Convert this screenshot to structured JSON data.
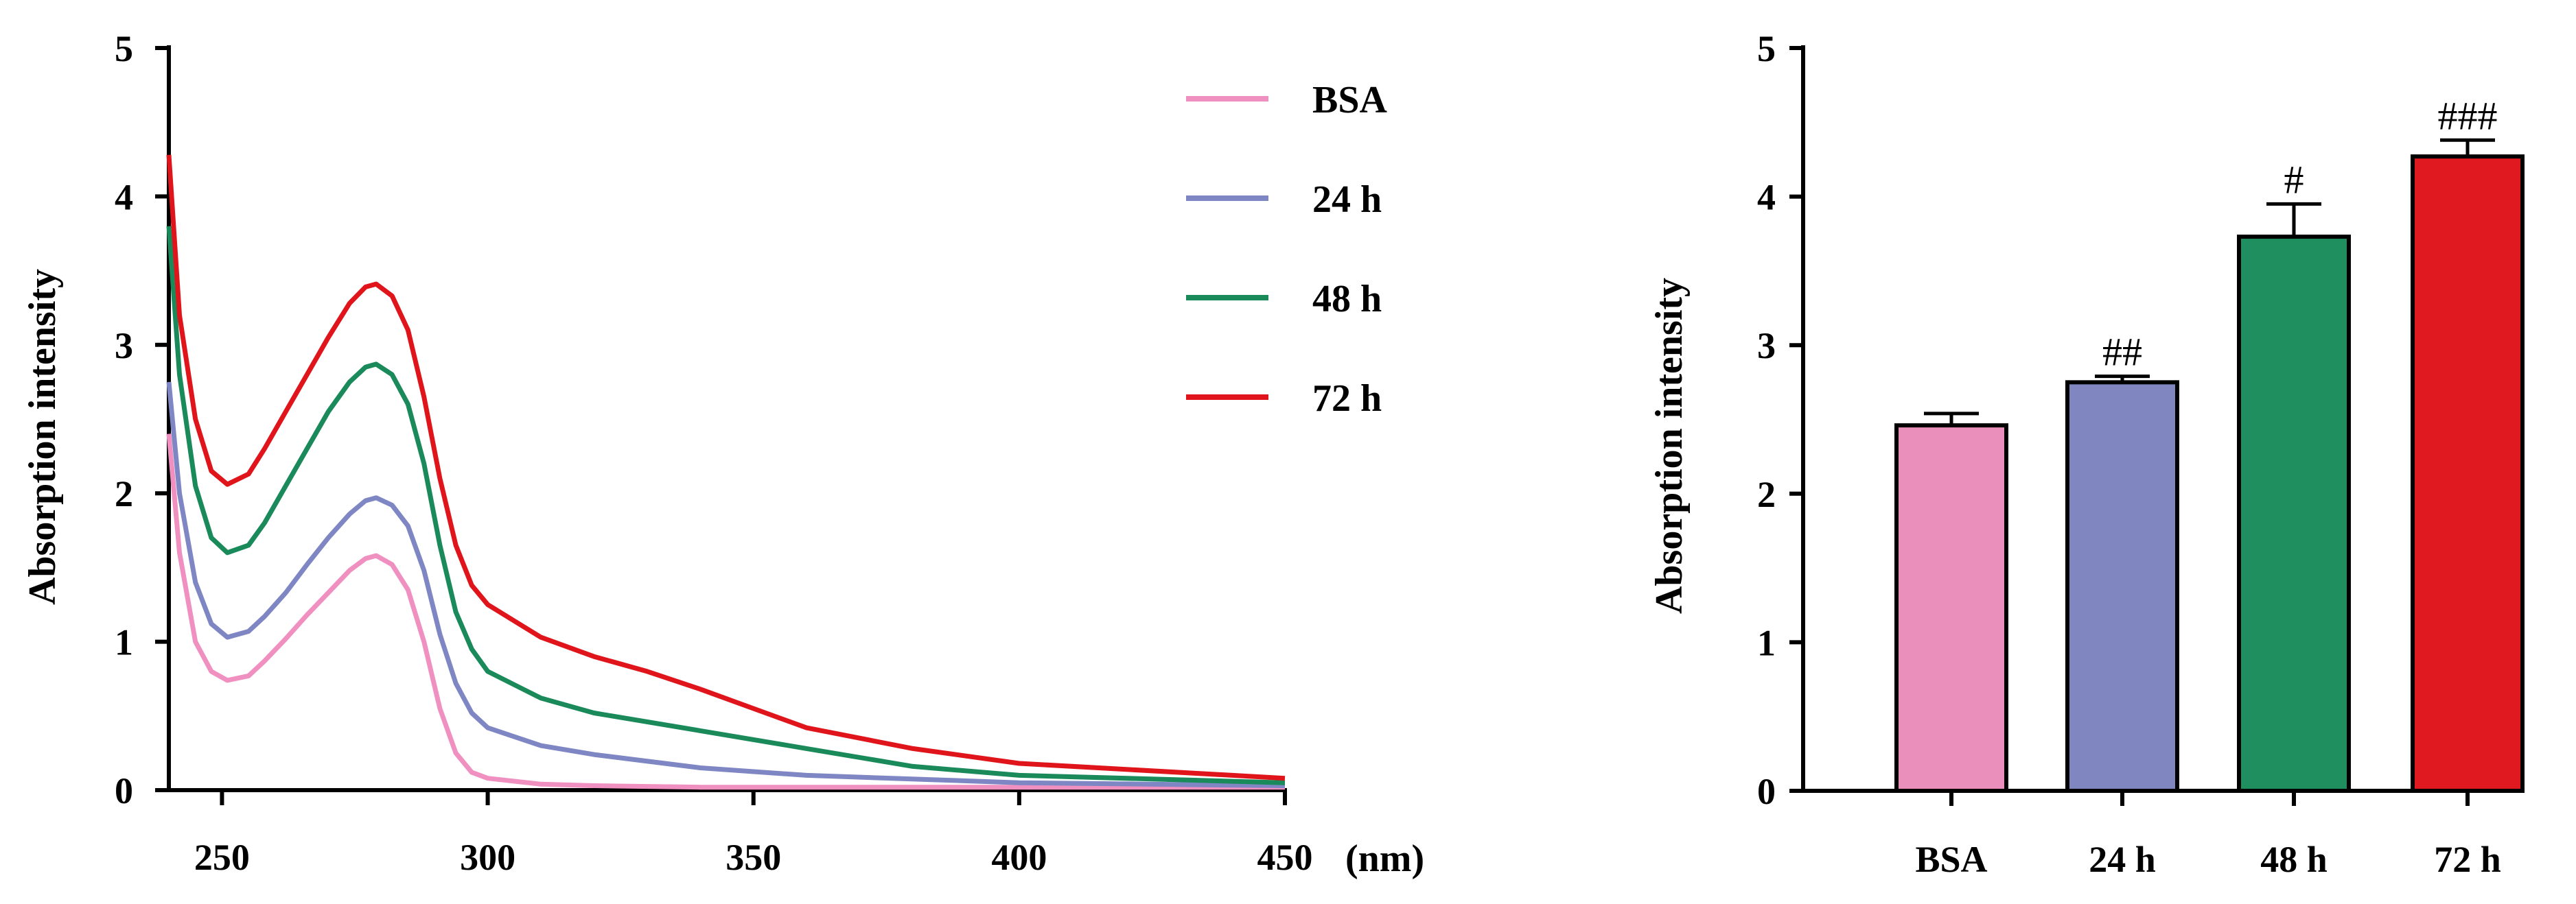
{
  "chart_data": [
    {
      "type": "line",
      "xlabel": "(nm)",
      "ylabel": "Absorption intensity",
      "xlim": [
        240,
        450
      ],
      "ylim": [
        0,
        5
      ],
      "xticks": [
        250,
        300,
        350,
        400,
        450
      ],
      "yticks": [
        0,
        1,
        2,
        3,
        4,
        5
      ],
      "legend_position": "top-right",
      "series": [
        {
          "name": "BSA",
          "color": "#f090c0",
          "x": [
            240,
            242,
            245,
            248,
            251,
            255,
            258,
            262,
            266,
            270,
            274,
            277,
            279,
            282,
            285,
            288,
            291,
            294,
            297,
            300,
            310,
            320,
            340,
            360,
            400,
            450
          ],
          "y": [
            2.4,
            1.6,
            1.0,
            0.8,
            0.74,
            0.77,
            0.87,
            1.02,
            1.18,
            1.33,
            1.48,
            1.56,
            1.58,
            1.52,
            1.35,
            1.0,
            0.55,
            0.25,
            0.12,
            0.08,
            0.04,
            0.03,
            0.02,
            0.02,
            0.02,
            0.02
          ]
        },
        {
          "name": "24 h",
          "color": "#7f86c4",
          "x": [
            240,
            242,
            245,
            248,
            251,
            255,
            258,
            262,
            266,
            270,
            274,
            277,
            279,
            282,
            285,
            288,
            291,
            294,
            297,
            300,
            310,
            320,
            340,
            360,
            400,
            450
          ],
          "y": [
            2.75,
            2.0,
            1.4,
            1.12,
            1.03,
            1.07,
            1.17,
            1.33,
            1.52,
            1.7,
            1.86,
            1.95,
            1.97,
            1.92,
            1.78,
            1.48,
            1.05,
            0.72,
            0.52,
            0.42,
            0.3,
            0.24,
            0.15,
            0.1,
            0.05,
            0.03
          ]
        },
        {
          "name": "48 h",
          "color": "#1a8a5a",
          "x": [
            240,
            242,
            245,
            248,
            251,
            255,
            258,
            262,
            266,
            270,
            274,
            277,
            279,
            282,
            285,
            288,
            291,
            294,
            297,
            300,
            310,
            320,
            340,
            360,
            380,
            400,
            450
          ],
          "y": [
            3.8,
            2.8,
            2.05,
            1.7,
            1.6,
            1.65,
            1.8,
            2.05,
            2.3,
            2.55,
            2.75,
            2.85,
            2.87,
            2.8,
            2.6,
            2.2,
            1.65,
            1.2,
            0.95,
            0.8,
            0.62,
            0.52,
            0.4,
            0.28,
            0.16,
            0.1,
            0.05
          ]
        },
        {
          "name": "72 h",
          "color": "#e0151c",
          "x": [
            240,
            242,
            245,
            248,
            251,
            255,
            258,
            262,
            266,
            270,
            274,
            277,
            279,
            282,
            285,
            288,
            291,
            294,
            297,
            300,
            310,
            320,
            330,
            340,
            350,
            360,
            380,
            400,
            450
          ],
          "y": [
            4.28,
            3.2,
            2.5,
            2.15,
            2.06,
            2.13,
            2.3,
            2.55,
            2.8,
            3.05,
            3.28,
            3.39,
            3.41,
            3.33,
            3.1,
            2.65,
            2.1,
            1.65,
            1.38,
            1.25,
            1.03,
            0.9,
            0.8,
            0.68,
            0.55,
            0.42,
            0.28,
            0.18,
            0.08
          ]
        }
      ]
    },
    {
      "type": "bar",
      "xlabel": "",
      "ylabel": "Absorption intensity",
      "ylim": [
        0,
        5
      ],
      "yticks": [
        0,
        1,
        2,
        3,
        4,
        5
      ],
      "categories": [
        "BSA",
        "24 h",
        "48 h",
        "72 h"
      ],
      "values": [
        2.46,
        2.75,
        3.73,
        4.27
      ],
      "errors": [
        0.08,
        0.04,
        0.22,
        0.11
      ],
      "colors": [
        "#ea8fbb",
        "#7f86c0",
        "#1f8f5f",
        "#e01820"
      ],
      "annotations": [
        "",
        "##",
        "#",
        "###"
      ]
    }
  ]
}
